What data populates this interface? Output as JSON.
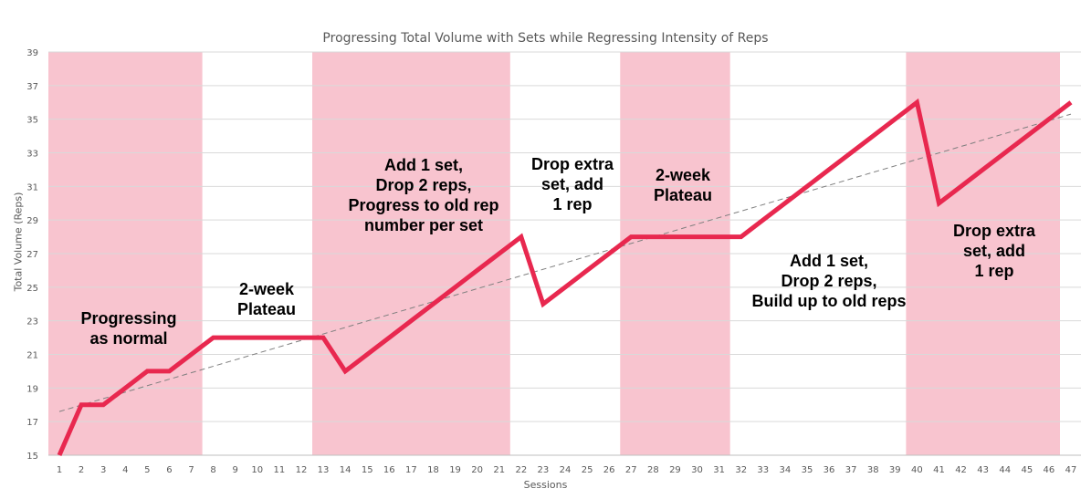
{
  "chart_data": {
    "type": "line",
    "title": "Progressing Total Volume with Sets while Regressing Intensity of Reps",
    "xlabel": "Sessions",
    "ylabel": "Total Volume (Reps)",
    "xlim": [
      1,
      47
    ],
    "ylim": [
      15,
      39
    ],
    "yticks": [
      15,
      17,
      19,
      21,
      23,
      25,
      27,
      29,
      31,
      33,
      35,
      37,
      39
    ],
    "grid": "horizontal",
    "series": [
      {
        "values": [
          15,
          18,
          18,
          19,
          20,
          20,
          21,
          22,
          22,
          22,
          22,
          22,
          22,
          20,
          21,
          22,
          23,
          24,
          25,
          26,
          27,
          28,
          24,
          25,
          26,
          27,
          28,
          28,
          28,
          28,
          28,
          28,
          29,
          30,
          31,
          32,
          33,
          34,
          35,
          36,
          30,
          31,
          32,
          33,
          34,
          35,
          36
        ],
        "color": "#e8284f"
      }
    ],
    "trendline": {
      "type": "linear",
      "start": [
        1,
        17.6
      ],
      "end": [
        47,
        35.3
      ],
      "color": "#7f7f7f",
      "style": "dashed"
    },
    "shaded_regions": [
      {
        "from": 1,
        "to": 8,
        "color": "#f8c4cf"
      },
      {
        "from": 13,
        "to": 22,
        "color": "#f8c4cf"
      },
      {
        "from": 27,
        "to": 32,
        "color": "#f8c4cf"
      },
      {
        "from": 40,
        "to": 47,
        "color": "#f8c4cf"
      }
    ],
    "annotations": [
      {
        "lines": [
          "Progressing",
          "as normal"
        ]
      },
      {
        "lines": [
          "2-week",
          "Plateau"
        ]
      },
      {
        "lines": [
          "Add 1 set,",
          "Drop 2 reps,",
          "Progress to old rep",
          "number per set"
        ]
      },
      {
        "lines": [
          "Drop extra",
          "set, add",
          "1 rep"
        ]
      },
      {
        "lines": [
          "2-week",
          "Plateau"
        ]
      },
      {
        "lines": [
          "Add 1 set,",
          "Drop 2 reps,",
          "Build up to old reps"
        ]
      },
      {
        "lines": [
          "Drop extra",
          "set, add",
          "1 rep"
        ]
      }
    ]
  }
}
